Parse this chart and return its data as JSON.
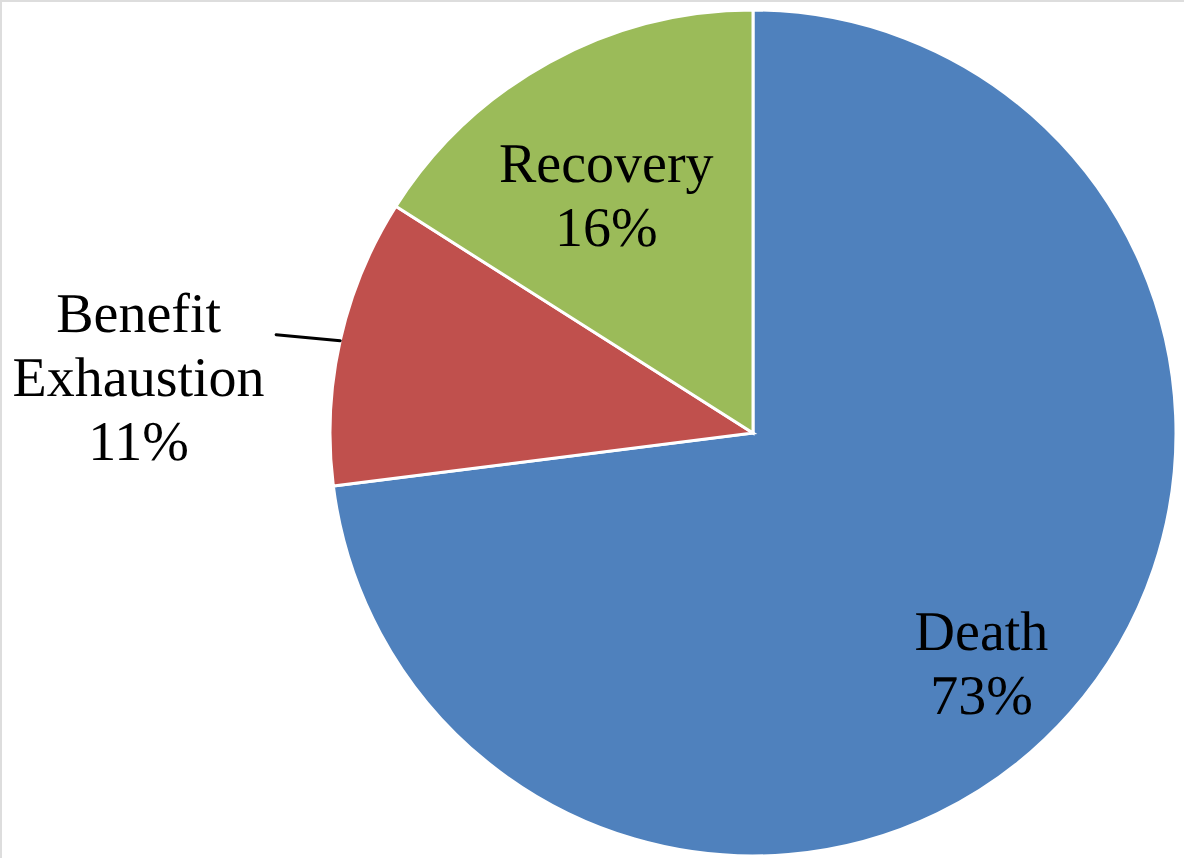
{
  "chart_data": {
    "type": "pie",
    "categories": [
      "Death",
      "Benefit Exhaustion",
      "Recovery"
    ],
    "values": [
      73,
      11,
      16
    ],
    "colors": [
      "#4f81bd",
      "#c0504d",
      "#9bbb59"
    ],
    "value_labels": [
      "73%",
      "11%",
      "16%"
    ]
  }
}
